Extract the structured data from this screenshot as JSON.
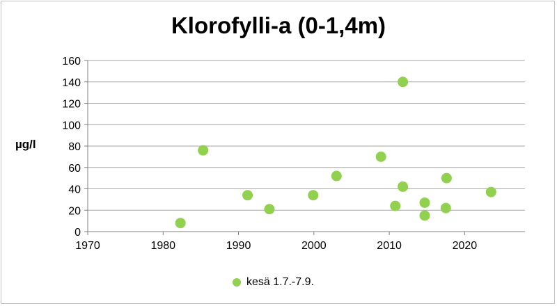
{
  "chart_data": {
    "type": "scatter",
    "title": "Klorofylli-a (0-1,4m)",
    "xlabel": "",
    "ylabel": "µg/l",
    "xlim": [
      1970,
      2028
    ],
    "ylim": [
      0,
      160
    ],
    "x_ticks": [
      "1970",
      "1980",
      "1990",
      "2000",
      "2010",
      "2020"
    ],
    "y_ticks": [
      "0",
      "20",
      "40",
      "60",
      "80",
      "100",
      "120",
      "140",
      "160"
    ],
    "grid": "horizontal",
    "legend_position": "bottom",
    "series": [
      {
        "name": "kesä 1.7.-7.9.",
        "color": "#92d050",
        "points": [
          {
            "x": 1982.3,
            "y": 8
          },
          {
            "x": 1985.3,
            "y": 76
          },
          {
            "x": 1991.2,
            "y": 34
          },
          {
            "x": 1994.1,
            "y": 21
          },
          {
            "x": 1999.9,
            "y": 34
          },
          {
            "x": 2003.0,
            "y": 52
          },
          {
            "x": 2008.9,
            "y": 70
          },
          {
            "x": 2010.8,
            "y": 24
          },
          {
            "x": 2011.8,
            "y": 42
          },
          {
            "x": 2011.8,
            "y": 140
          },
          {
            "x": 2014.7,
            "y": 27
          },
          {
            "x": 2014.7,
            "y": 15
          },
          {
            "x": 2017.5,
            "y": 22
          },
          {
            "x": 2017.6,
            "y": 50
          },
          {
            "x": 2023.5,
            "y": 37
          }
        ]
      }
    ]
  }
}
